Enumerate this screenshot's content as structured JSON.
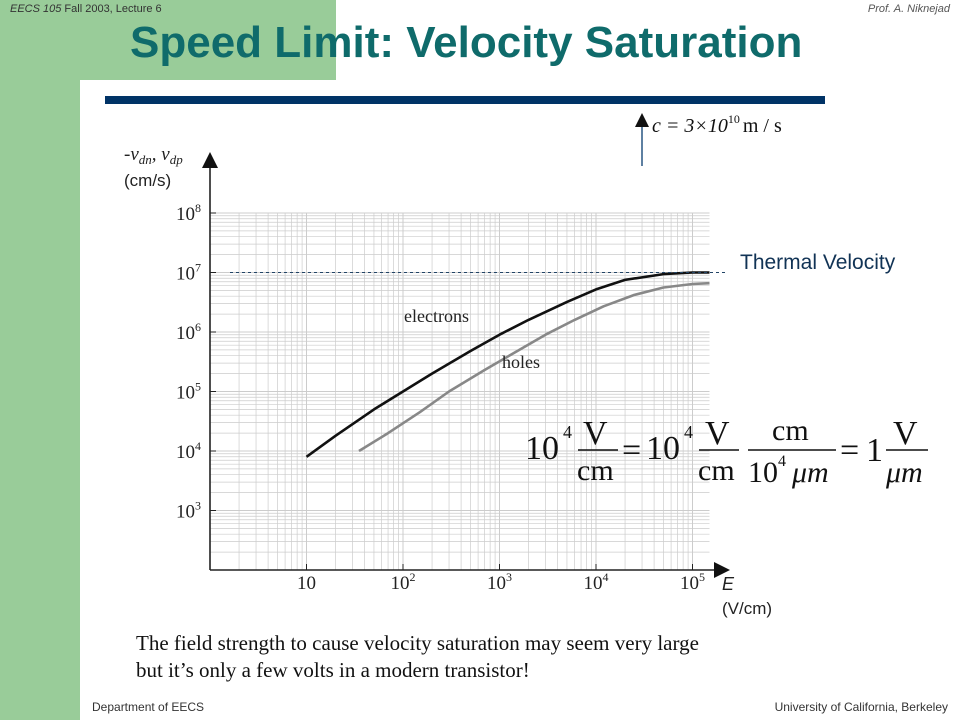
{
  "header": {
    "course": "EECS 105",
    "term": " Fall 2003, Lecture 6",
    "author": "Prof. A. Niknejad"
  },
  "slide": {
    "title": "Speed Limit: Velocity Saturation",
    "caption_line1": "The field strength to cause velocity saturation may seem very large",
    "caption_line2": "but it’s only a few volts in a modern transistor!",
    "thermal_label": "Thermal Velocity"
  },
  "footer": {
    "left": "Department of EECS",
    "right": "University of California, Berkeley"
  },
  "speed_of_light": {
    "lhs": "c = 3×10",
    "exp": "10",
    "units": "m / s"
  },
  "equation": {
    "coef1": "10",
    "exp1": "4",
    "num1": "V",
    "den1": "cm",
    "eq": "=",
    "coef2": "10",
    "exp2": "4",
    "num2": "V",
    "den2": "cm",
    "num3": "cm",
    "den3_coef": "10",
    "den3_exp": "4",
    "den3_unit": "μm",
    "eq2": "=",
    "one": "1",
    "num4": "V",
    "den4": "μm"
  },
  "chart_data": {
    "type": "line",
    "ylabel_line1": "-v",
    "ylabel_sub1": "dn",
    "ylabel_mid": ", v",
    "ylabel_sub2": "dp",
    "ylabel_units": "(cm/s)",
    "xlabel": "E",
    "xlabel_units": "(V/cm)",
    "x_scale": "log",
    "y_scale": "log",
    "xlim": [
      1,
      100000
    ],
    "ylim": [
      100,
      100000000
    ],
    "grid": true,
    "x_ticks": [
      {
        "base": "10",
        "exp": ""
      },
      {
        "base": "10",
        "exp": "2"
      },
      {
        "base": "10",
        "exp": "3"
      },
      {
        "base": "10",
        "exp": "4"
      },
      {
        "base": "10",
        "exp": "5"
      }
    ],
    "y_ticks": [
      {
        "base": "10",
        "exp": "3"
      },
      {
        "base": "10",
        "exp": "4"
      },
      {
        "base": "10",
        "exp": "5"
      },
      {
        "base": "10",
        "exp": "6"
      },
      {
        "base": "10",
        "exp": "7"
      },
      {
        "base": "10",
        "exp": "8"
      }
    ],
    "series": [
      {
        "name": "electrons",
        "color": "#111111",
        "x": [
          10,
          20,
          50,
          100,
          200,
          500,
          1000,
          2000,
          5000,
          10000,
          20000,
          50000,
          100000,
          150000
        ],
        "y": [
          8000,
          18000,
          50000,
          100000,
          200000,
          480000,
          900000,
          1600000,
          3200000,
          5200000,
          7500000,
          9400000,
          10000000,
          10000000
        ]
      },
      {
        "name": "holes",
        "color": "#888888",
        "x": [
          35,
          70,
          150,
          300,
          700,
          1500,
          3000,
          6000,
          12000,
          25000,
          50000,
          100000,
          150000
        ],
        "y": [
          10000,
          20000,
          45000,
          100000,
          230000,
          470000,
          900000,
          1600000,
          2700000,
          4200000,
          5600000,
          6400000,
          6600000
        ]
      }
    ],
    "reference": {
      "name": "Thermal Velocity",
      "y": 10000000,
      "style": "dashed"
    }
  }
}
